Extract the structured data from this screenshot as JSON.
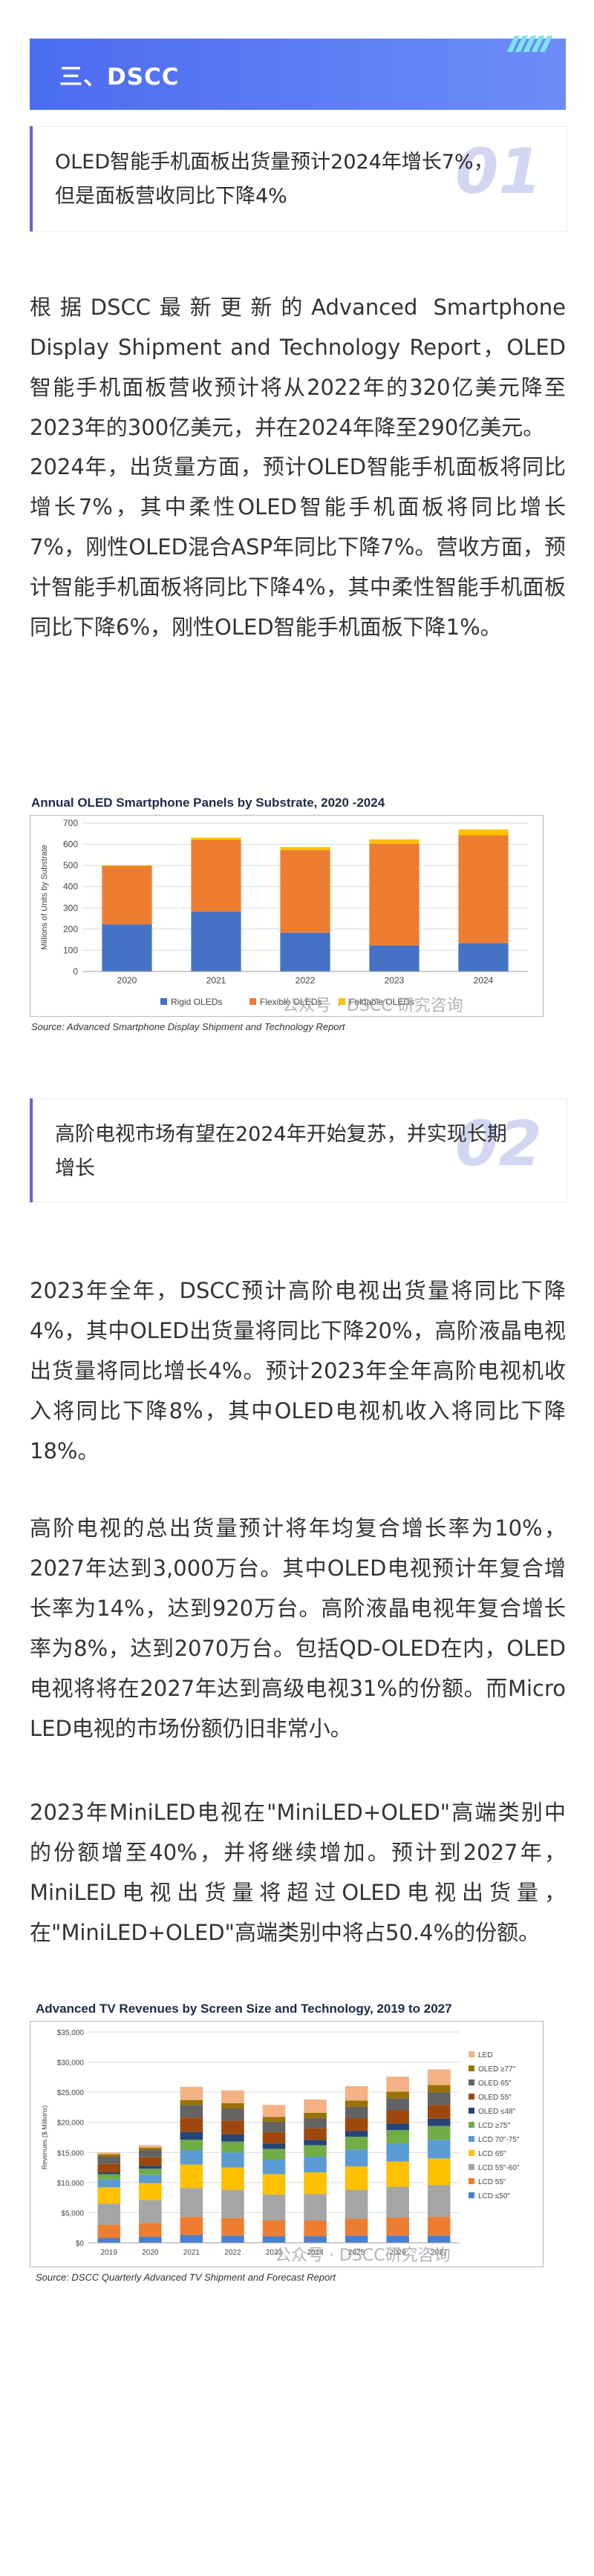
{
  "section": {
    "title": "三、DSCC"
  },
  "item1": {
    "number": "01",
    "title": "OLED智能手机面板出货量预计2024年增长7%，但是面板营收同比下降4%",
    "para1": "根据DSCC最新更新的Advanced Smartphone Display Shipment and Technology Report，OLED智能手机面板营收预计将从2022年的320亿美元降至2023年的300亿美元，并在2024年降至290亿美元。",
    "para2": "2024年，出货量方面，预计OLED智能手机面板将同比增长7%，其中柔性OLED智能手机面板将同比增长7%，刚性OLED混合ASP年同比下降7%。营收方面，预计智能手机面板将同比下降4%，其中柔性智能手机面板同比下降6%，刚性OLED智能手机面板下降1%。"
  },
  "chart1": {
    "source": "Source: Advanced Smartphone Display Shipment and Technology Report",
    "watermark": "公众号 · DSCC 研究咨询"
  },
  "item2": {
    "number": "02",
    "title": "高阶电视市场有望在2024年开始复苏，并实现长期增长",
    "para1": "2023年全年，DSCC预计高阶电视出货量将同比下降4%，其中OLED出货量将同比下降20%，高阶液晶电视出货量将同比增长4%。预计2023年全年高阶电视机收入将同比下降8%，其中OLED电视机收入将同比下降18%。",
    "para2": "高阶电视的总出货量预计将年均复合增长率为10%，2027年达到3,000万台。其中OLED电视预计年复合增长率为14%，达到920万台。高阶液晶电视年复合增长率为8%，达到2070万台。包括QD-OLED在内，OLED电视将将在2027年达到高级电视31%的份额。而Micro LED电视的市场份额仍旧非常小。",
    "para3": "2023年MiniLED电视在\"MiniLED+OLED\"高端类别中的份额增至40%，并将继续增加。预计到2027年，MiniLED电视出货量将超过OLED电视出货量，在\"MiniLED+OLED\"高端类别中将占50.4%的份额。"
  },
  "chart2": {
    "source": "Source: DSCC Quarterly Advanced TV Shipment and Forecast Report",
    "watermark": "公众号 · DSCC研究咨询"
  },
  "chart_data": [
    {
      "type": "bar",
      "stacked": true,
      "title": "Annual OLED Smartphone Panels by Substrate, 2020 -2024",
      "ylabel": "Millions of Units by Substrate",
      "xlabel": "",
      "categories": [
        "2020",
        "2021",
        "2022",
        "2023",
        "2024"
      ],
      "ylim": [
        0,
        700
      ],
      "yticks": [
        0,
        100,
        200,
        300,
        400,
        500,
        600,
        700
      ],
      "grid": true,
      "legend": "bottom",
      "series": [
        {
          "name": "Rigid OLEDs",
          "color": "#4472c4",
          "values": [
            222,
            282,
            183,
            123,
            134
          ]
        },
        {
          "name": "Flexible OLEDs",
          "color": "#ed7d31",
          "values": [
            275,
            340,
            390,
            480,
            508
          ]
        },
        {
          "name": "Foldable OLEDs",
          "color": "#ffc000",
          "values": [
            4,
            9,
            14,
            20,
            28
          ]
        }
      ]
    },
    {
      "type": "bar",
      "stacked": true,
      "title": "Advanced TV Revenues by Screen Size and Technology, 2019 to 2027",
      "ylabel": "Revenues ($ Millions)",
      "xlabel": "",
      "categories": [
        "2019",
        "2020",
        "2021",
        "2022",
        "2023",
        "2024",
        "2025",
        "2026",
        "2027"
      ],
      "ylim": [
        0,
        35000
      ],
      "yticks": [
        "$0",
        "$5,000",
        "$10,000",
        "$15,000",
        "$20,000",
        "$25,000",
        "$30,000",
        "$35,000"
      ],
      "grid": true,
      "legend": "right",
      "series": [
        {
          "name": "LCD ≤50\"",
          "color": "#4a7fd0",
          "values": [
            800,
            1000,
            1300,
            1200,
            1100,
            1100,
            1200,
            1200,
            1200
          ]
        },
        {
          "name": "LCD 55\"",
          "color": "#ed7d31",
          "values": [
            2200,
            2300,
            3000,
            2900,
            2600,
            2600,
            2800,
            3000,
            3100
          ]
        },
        {
          "name": "LCD 55\"-60\"",
          "color": "#a5a5a5",
          "values": [
            3500,
            3800,
            4800,
            4700,
            4300,
            4400,
            4800,
            5100,
            5300
          ]
        },
        {
          "name": "LCD 65\"",
          "color": "#ffc000",
          "values": [
            2700,
            2800,
            3900,
            3700,
            3400,
            3600,
            3900,
            4200,
            4400
          ]
        },
        {
          "name": "LCD 70\"-75\"",
          "color": "#5b9bd5",
          "values": [
            1300,
            1400,
            2400,
            2500,
            2400,
            2600,
            2800,
            3000,
            3100
          ]
        },
        {
          "name": "LCD ≥75\"",
          "color": "#70ad47",
          "values": [
            900,
            1000,
            1700,
            1800,
            1800,
            1900,
            2100,
            2200,
            2300
          ]
        },
        {
          "name": "OLED ≤48\"",
          "color": "#264478",
          "values": [
            300,
            500,
            1300,
            1200,
            900,
            900,
            1000,
            1100,
            1200
          ]
        },
        {
          "name": "OLED 55\"",
          "color": "#9e480e",
          "values": [
            1400,
            1400,
            2400,
            2300,
            1900,
            1900,
            2100,
            2200,
            2300
          ]
        },
        {
          "name": "OLED 65\"",
          "color": "#636363",
          "values": [
            1200,
            1200,
            2100,
            2000,
            1700,
            1700,
            1900,
            2000,
            2100
          ]
        },
        {
          "name": "OLED ≥77\"",
          "color": "#997300",
          "values": [
            400,
            400,
            800,
            900,
            800,
            900,
            1000,
            1100,
            1200
          ]
        },
        {
          "name": "LED",
          "color": "#f4b183",
          "values": [
            300,
            400,
            2200,
            2100,
            2000,
            2200,
            2400,
            2500,
            2600
          ]
        }
      ]
    }
  ]
}
